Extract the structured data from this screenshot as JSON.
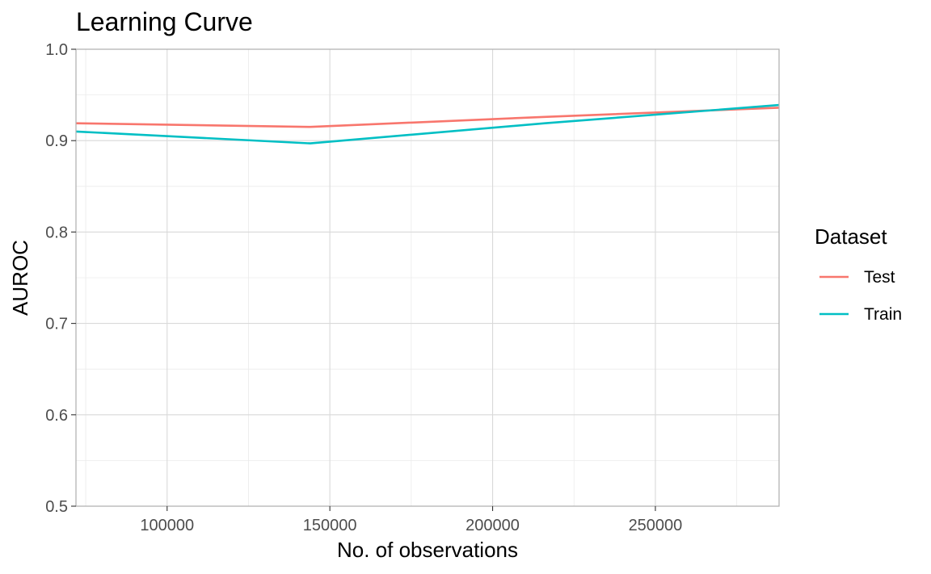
{
  "chart_data": {
    "type": "line",
    "title": "Learning Curve",
    "xlabel": "No. of observations",
    "ylabel": "AUROC",
    "xlim": [
      72000,
      288000
    ],
    "ylim": [
      0.5,
      1.0
    ],
    "x_ticks": [
      100000,
      150000,
      200000,
      250000
    ],
    "x_tick_labels": [
      "100000",
      "150000",
      "200000",
      "250000"
    ],
    "y_ticks": [
      0.5,
      0.6,
      0.7,
      0.8,
      0.9,
      1.0
    ],
    "y_tick_labels": [
      "0.5",
      "0.6",
      "0.7",
      "0.8",
      "0.9",
      "1.0"
    ],
    "grid": true,
    "legend": {
      "title": "Dataset",
      "position": "right"
    },
    "series": [
      {
        "name": "Test",
        "color": "#F8766D",
        "x": [
          72000,
          144000,
          216000,
          288000
        ],
        "y": [
          0.919,
          0.915,
          0.926,
          0.936
        ]
      },
      {
        "name": "Train",
        "color": "#00BFC4",
        "x": [
          72000,
          144000,
          216000,
          288000
        ],
        "y": [
          0.91,
          0.897,
          0.919,
          0.939
        ]
      }
    ]
  }
}
